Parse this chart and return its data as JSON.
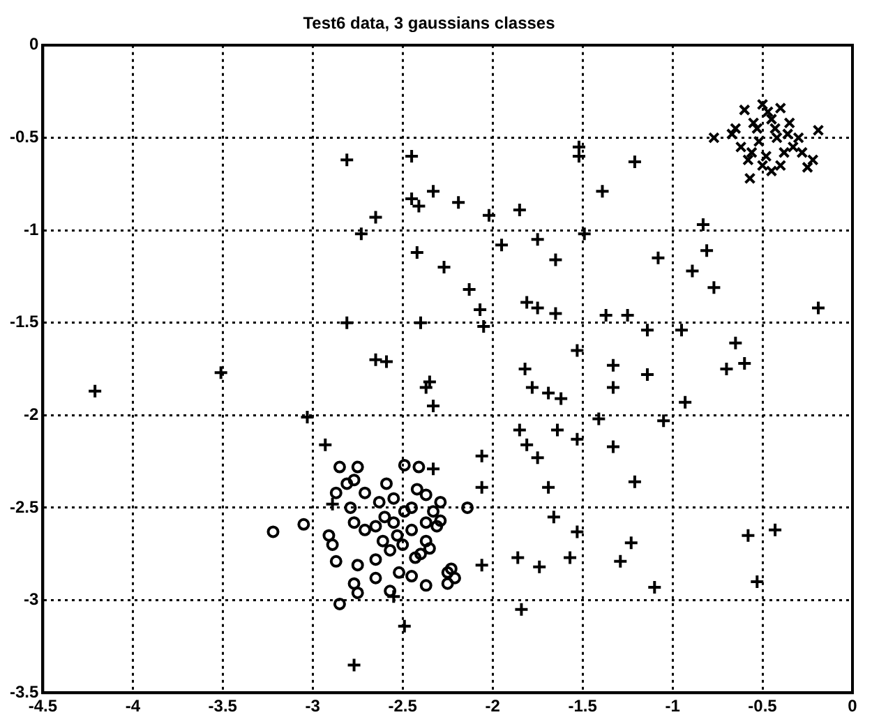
{
  "chart_data": {
    "type": "scatter",
    "title": "Test6 data, 3 gaussians classes",
    "xlim": [
      -4.5,
      0
    ],
    "xticks": [
      -4.5,
      -4,
      -3.5,
      -3,
      -2.5,
      -2,
      -1.5,
      -1,
      -0.5,
      0
    ],
    "ylim": [
      -3.5,
      0
    ],
    "yticks": [
      -3.5,
      -3,
      -2.5,
      -2,
      -1.5,
      -1,
      -0.5,
      0
    ],
    "grid": true,
    "legend": false,
    "series": [
      {
        "color": "#000000",
        "marker": "cross",
        "x": [
          -2.81,
          -2.45,
          -2.45,
          -2.41,
          -2.33,
          -2.73,
          -2.65,
          -2.42,
          -2.27,
          -2.81,
          -2.4,
          -2.19,
          -2.02,
          -1.85,
          -1.52,
          -1.52,
          -1.21,
          -1.39,
          -1.95,
          -1.75,
          -1.49,
          -1.65,
          -1.08,
          -0.83,
          -0.81,
          -0.89,
          -0.77,
          -0.19,
          -2.13,
          -2.07,
          -2.05,
          -1.81,
          -1.75,
          -1.65,
          -1.37,
          -1.25,
          -1.14,
          -0.95,
          -0.65,
          -1.53,
          -0.7,
          -0.6,
          -1.82,
          -1.78,
          -1.69,
          -1.62,
          -1.33,
          -1.33,
          -1.14,
          -0.93,
          -1.41,
          -1.05,
          -1.85,
          -1.81,
          -1.75,
          -1.64,
          -1.53,
          -1.33,
          -2.06,
          -2.06,
          -1.69,
          -1.21,
          -1.66,
          -1.53,
          -1.23,
          -1.29,
          -0.58,
          -0.43,
          -0.53,
          -2.06,
          -1.86,
          -1.74,
          -1.57,
          -1.1,
          -1.84,
          -4.21,
          -3.51,
          -2.65,
          -2.59,
          -2.37,
          -2.35,
          -2.33,
          -3.03,
          -2.93,
          -2.89,
          -2.55,
          -2.49,
          -2.77,
          -2.33
        ],
        "values": [
          -0.62,
          -0.6,
          -0.83,
          -0.87,
          -0.79,
          -1.02,
          -0.93,
          -1.12,
          -1.2,
          -1.5,
          -1.5,
          -0.85,
          -0.92,
          -0.89,
          -0.55,
          -0.6,
          -0.63,
          -0.79,
          -1.08,
          -1.05,
          -1.02,
          -1.16,
          -1.15,
          -0.97,
          -1.11,
          -1.22,
          -1.31,
          -1.42,
          -1.32,
          -1.43,
          -1.52,
          -1.39,
          -1.42,
          -1.45,
          -1.46,
          -1.46,
          -1.54,
          -1.54,
          -1.61,
          -1.65,
          -1.75,
          -1.72,
          -1.75,
          -1.85,
          -1.88,
          -1.91,
          -1.73,
          -1.85,
          -1.78,
          -1.93,
          -2.02,
          -2.03,
          -2.08,
          -2.16,
          -2.23,
          -2.08,
          -2.13,
          -2.17,
          -2.22,
          -2.39,
          -2.39,
          -2.36,
          -2.55,
          -2.63,
          -2.69,
          -2.79,
          -2.65,
          -2.62,
          -2.9,
          -2.81,
          -2.77,
          -2.82,
          -2.77,
          -2.93,
          -3.05,
          -1.87,
          -1.77,
          -1.7,
          -1.71,
          -1.85,
          -1.82,
          -1.95,
          -2.01,
          -2.16,
          -2.48,
          -2.98,
          -3.14,
          -3.35,
          -2.29
        ]
      },
      {
        "color": "#000000",
        "marker": "x",
        "x": [
          -0.77,
          -0.67,
          -0.57,
          -0.22,
          -0.19,
          -0.25,
          -0.6,
          -0.5,
          -0.4,
          -0.55,
          -0.45,
          -0.35,
          -0.3,
          -0.62,
          -0.52,
          -0.42,
          -0.48,
          -0.38,
          -0.58,
          -0.45,
          -0.53,
          -0.43,
          -0.33,
          -0.5,
          -0.65,
          -0.4,
          -0.47,
          -0.56,
          -0.36,
          -0.28
        ],
        "values": [
          -0.5,
          -0.48,
          -0.72,
          -0.62,
          -0.46,
          -0.66,
          -0.35,
          -0.32,
          -0.34,
          -0.42,
          -0.4,
          -0.42,
          -0.5,
          -0.55,
          -0.52,
          -0.5,
          -0.6,
          -0.58,
          -0.62,
          -0.68,
          -0.45,
          -0.45,
          -0.55,
          -0.65,
          -0.45,
          -0.65,
          -0.36,
          -0.58,
          -0.48,
          -0.58
        ]
      },
      {
        "color": "#000000",
        "marker": "circle",
        "x": [
          -3.22,
          -3.05,
          -2.85,
          -2.75,
          -2.49,
          -2.41,
          -2.91,
          -2.89,
          -2.87,
          -2.75,
          -2.65,
          -2.77,
          -2.75,
          -2.85,
          -2.65,
          -2.57,
          -2.45,
          -2.37,
          -2.43,
          -2.37,
          -2.25,
          -2.25,
          -2.81,
          -2.71,
          -2.59,
          -2.77,
          -2.65,
          -2.71,
          -2.55,
          -2.49,
          -2.53,
          -2.57,
          -2.61,
          -2.37,
          -2.33,
          -2.31,
          -2.37,
          -2.45,
          -2.63,
          -2.79,
          -2.87,
          -2.77,
          -2.14,
          -2.23,
          -2.21,
          -2.29,
          -2.29,
          -2.45,
          -2.5,
          -2.4,
          -2.55,
          -2.6,
          -2.52,
          -2.42,
          -2.35
        ],
        "values": [
          -2.63,
          -2.59,
          -2.28,
          -2.28,
          -2.27,
          -2.28,
          -2.65,
          -2.7,
          -2.79,
          -2.81,
          -2.78,
          -2.91,
          -2.96,
          -3.02,
          -2.88,
          -2.95,
          -2.87,
          -2.92,
          -2.77,
          -2.68,
          -2.85,
          -2.91,
          -2.37,
          -2.42,
          -2.37,
          -2.58,
          -2.6,
          -2.62,
          -2.58,
          -2.52,
          -2.65,
          -2.73,
          -2.68,
          -2.43,
          -2.52,
          -2.6,
          -2.58,
          -2.62,
          -2.47,
          -2.5,
          -2.42,
          -2.35,
          -2.5,
          -2.83,
          -2.88,
          -2.47,
          -2.57,
          -2.5,
          -2.7,
          -2.75,
          -2.45,
          -2.55,
          -2.85,
          -2.4,
          -2.72
        ]
      }
    ]
  }
}
